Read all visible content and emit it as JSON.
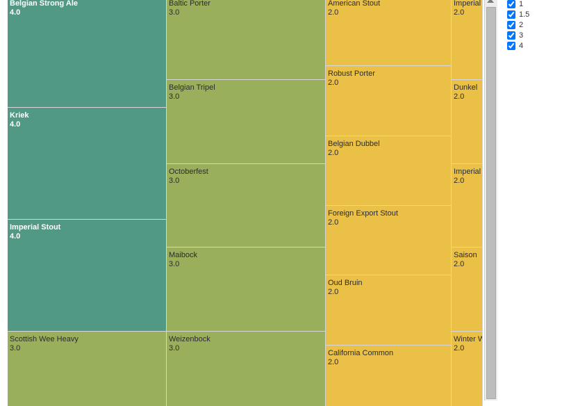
{
  "chart_data": {
    "type": "treemap",
    "colors": {
      "4": "#529985",
      "3": "#9aaf5b",
      "2": "#ebc046"
    },
    "items": [
      {
        "name": "Belgian Strong Ale",
        "value": "4.0",
        "group": "4"
      },
      {
        "name": "Kriek",
        "value": "4.0",
        "group": "4"
      },
      {
        "name": "Imperial Stout",
        "value": "4.0",
        "group": "4"
      },
      {
        "name": "Scottish Wee Heavy",
        "value": "3.0",
        "group": "3"
      },
      {
        "name": "Baltic Porter",
        "value": "3.0",
        "group": "3"
      },
      {
        "name": "Belgian Tripel",
        "value": "3.0",
        "group": "3"
      },
      {
        "name": "Octoberfest",
        "value": "3.0",
        "group": "3"
      },
      {
        "name": "Maibock",
        "value": "3.0",
        "group": "3"
      },
      {
        "name": "Weizenbock",
        "value": "3.0",
        "group": "3"
      },
      {
        "name": "American Stout",
        "value": "2.0",
        "group": "2"
      },
      {
        "name": "Robust Porter",
        "value": "2.0",
        "group": "2"
      },
      {
        "name": "Belgian Dubbel",
        "value": "2.0",
        "group": "2"
      },
      {
        "name": "Foreign Export Stout",
        "value": "2.0",
        "group": "2"
      },
      {
        "name": "Oud Bruin",
        "value": "2.0",
        "group": "2"
      },
      {
        "name": "California Common",
        "value": "2.0",
        "group": "2"
      },
      {
        "name": "Imperial I",
        "value": "2.0",
        "group": "2"
      },
      {
        "name": "Dunkel",
        "value": "2.0",
        "group": "2"
      },
      {
        "name": "Imperial I",
        "value": "2.0",
        "group": "2"
      },
      {
        "name": "Saison",
        "value": "2.0",
        "group": "2"
      },
      {
        "name": "Winter W",
        "value": "2.0",
        "group": "2"
      }
    ]
  },
  "legend": {
    "items": [
      {
        "label": "1",
        "checked": true
      },
      {
        "label": "1.5",
        "checked": true
      },
      {
        "label": "2",
        "checked": true
      },
      {
        "label": "3",
        "checked": true
      },
      {
        "label": "4",
        "checked": true
      }
    ]
  }
}
